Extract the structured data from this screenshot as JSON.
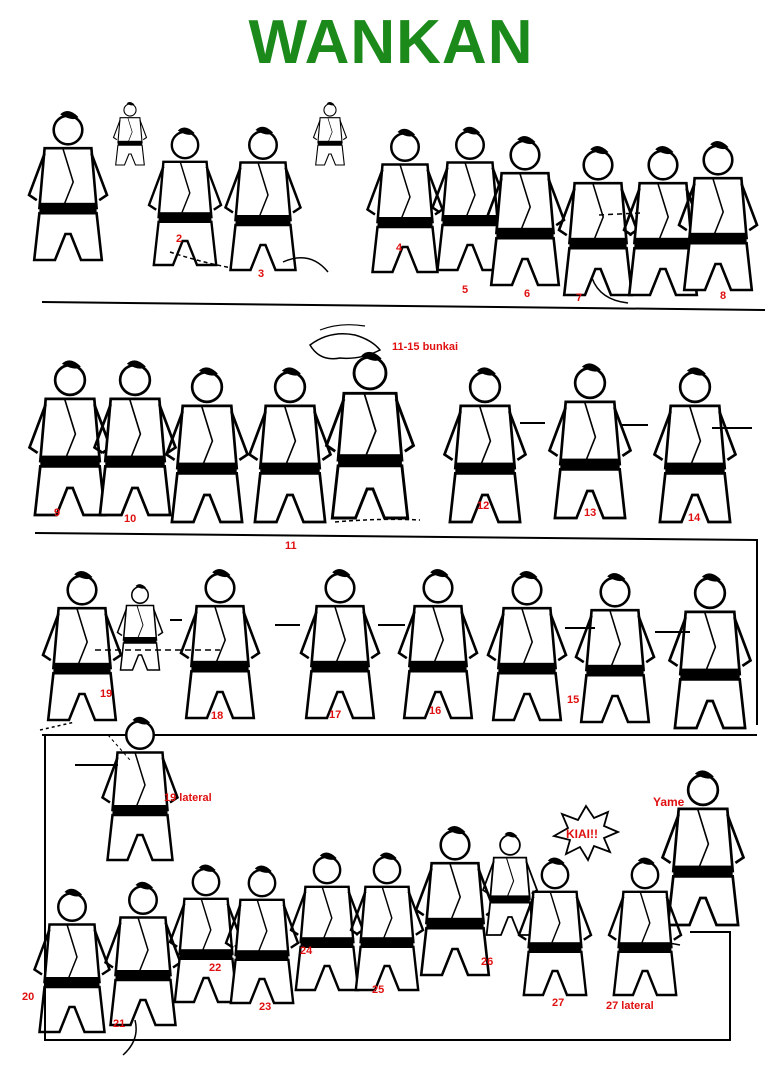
{
  "title": "WANKAN",
  "colors": {
    "title": "#1b8a1b",
    "labels": "#e01010",
    "ink": "#000000"
  },
  "labels": {
    "m2": "2",
    "m3": "3",
    "m4": "4",
    "m5": "5",
    "m6": "6",
    "m7": "7",
    "m8": "8",
    "bunkai": "11-15 bunkai",
    "m9": "9",
    "m10": "10",
    "m11": "11",
    "m12": "12",
    "m13": "13",
    "m14": "14",
    "m19": "19",
    "m18": "18",
    "m17": "17",
    "m16": "16",
    "m15": "15",
    "m19lat": "19 lateral",
    "yame": "Yame",
    "kiai": "KIAI!!",
    "m20": "20",
    "m21": "21",
    "m22": "22",
    "m23": "23",
    "m24": "24",
    "m25": "25",
    "m26": "26",
    "m27": "27",
    "m27lat": "27 lateral"
  },
  "figure_icon": "karate-figure-icon"
}
